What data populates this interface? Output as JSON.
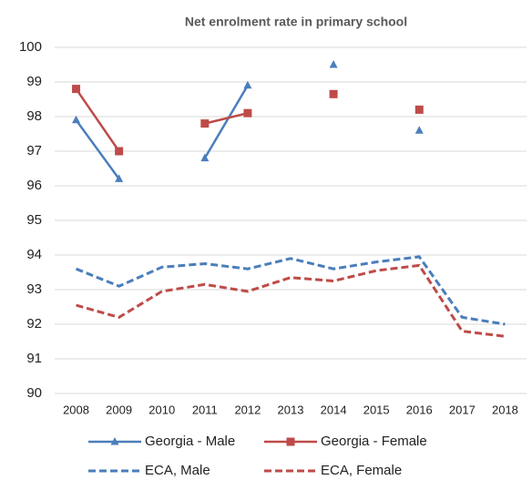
{
  "chart_data": {
    "type": "line",
    "title": "Net enrolment rate in primary school",
    "categories": [
      "2008",
      "2009",
      "2010",
      "2011",
      "2012",
      "2013",
      "2014",
      "2015",
      "2016",
      "2017",
      "2018"
    ],
    "ylim": [
      90,
      100
    ],
    "yticks": [
      90,
      91,
      92,
      93,
      94,
      95,
      96,
      97,
      98,
      99,
      100
    ],
    "grid": true,
    "series": [
      {
        "name": "Georgia - Male",
        "color": "#4a7ebb",
        "dash": false,
        "marker": "triangle",
        "values": [
          97.9,
          96.2,
          null,
          96.8,
          98.9,
          null,
          99.5,
          null,
          97.6,
          null,
          null
        ]
      },
      {
        "name": "Georgia - Female",
        "color": "#be4b48",
        "dash": false,
        "marker": "square",
        "values": [
          98.8,
          97.0,
          null,
          97.8,
          98.1,
          null,
          98.65,
          null,
          98.2,
          null,
          null
        ]
      },
      {
        "name": "ECA, Male",
        "color": "#4a7ebb",
        "dash": true,
        "marker": "none",
        "values": [
          93.6,
          93.1,
          93.65,
          93.75,
          93.6,
          93.9,
          93.6,
          93.8,
          93.95,
          92.2,
          92.0
        ]
      },
      {
        "name": "ECA, Female",
        "color": "#be4b48",
        "dash": true,
        "marker": "none",
        "values": [
          92.55,
          92.2,
          92.95,
          93.15,
          92.95,
          93.35,
          93.25,
          93.55,
          93.7,
          91.8,
          91.65
        ]
      }
    ]
  }
}
